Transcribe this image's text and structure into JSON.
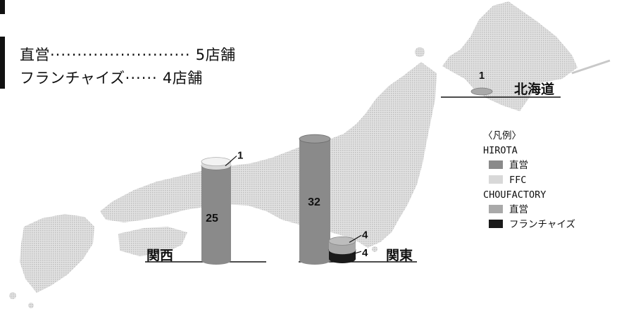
{
  "store_summary": [
    {
      "label": "直営",
      "dots": "··························",
      "count": "5店舗"
    },
    {
      "label": "フランチャイズ",
      "dots": "······",
      "count": "4店舗"
    }
  ],
  "chart_data": {
    "type": "bar",
    "regions": [
      {
        "name": "北海道",
        "series": [
          {
            "brand": "CHOUFACTORY",
            "type": "直営",
            "value": 1
          }
        ]
      },
      {
        "name": "関西",
        "series": [
          {
            "brand": "HIROTA",
            "type": "直営",
            "value": 25
          },
          {
            "brand": "HIROTA",
            "type": "FFC",
            "value": 1
          }
        ]
      },
      {
        "name": "関東",
        "series": [
          {
            "brand": "HIROTA",
            "type": "直営",
            "value": 32
          },
          {
            "brand": "CHOUFACTORY",
            "type": "直営",
            "value": 4
          },
          {
            "brand": "CHOUFACTORY",
            "type": "フランチャイズ",
            "value": 4
          }
        ]
      }
    ],
    "legend": {
      "title": "〈凡例〉",
      "groups": [
        {
          "brand": "HIROTA",
          "items": [
            {
              "label": "直営",
              "color": "#8a8a8a"
            },
            {
              "label": "FFC",
              "color": "#d8d8d8"
            }
          ]
        },
        {
          "brand": "CHOUFACTORY",
          "items": [
            {
              "label": "直営",
              "color": "#a9a9a9"
            },
            {
              "label": "フランチャイズ",
              "color": "#1a1a1a"
            }
          ]
        }
      ],
      "placement": "right"
    }
  },
  "colors": {
    "map_fill": "#d6d6d6",
    "hirota_direct": "#8a8a8a",
    "hirota_ffc": "#d8d8d8",
    "chou_direct": "#a9a9a9",
    "chou_franchise": "#1a1a1a"
  }
}
